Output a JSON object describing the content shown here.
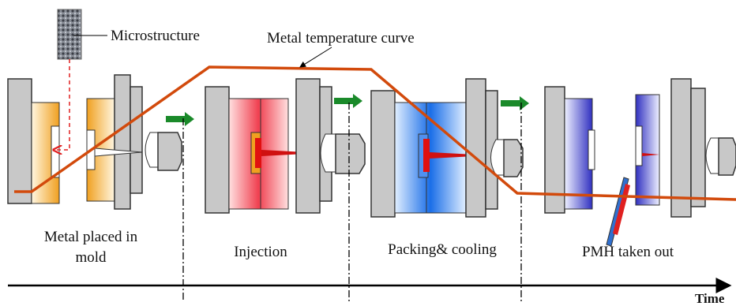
{
  "labels": {
    "microstructure": "Microstructure",
    "curve": "Metal temperature curve",
    "time": "Time"
  },
  "stages": [
    {
      "label_lines": [
        "Metal placed in",
        "mold"
      ]
    },
    {
      "label_lines": [
        "Injection"
      ]
    },
    {
      "label_lines": [
        "Packing& cooling"
      ]
    },
    {
      "label_lines": [
        "PMH taken out"
      ]
    }
  ]
}
